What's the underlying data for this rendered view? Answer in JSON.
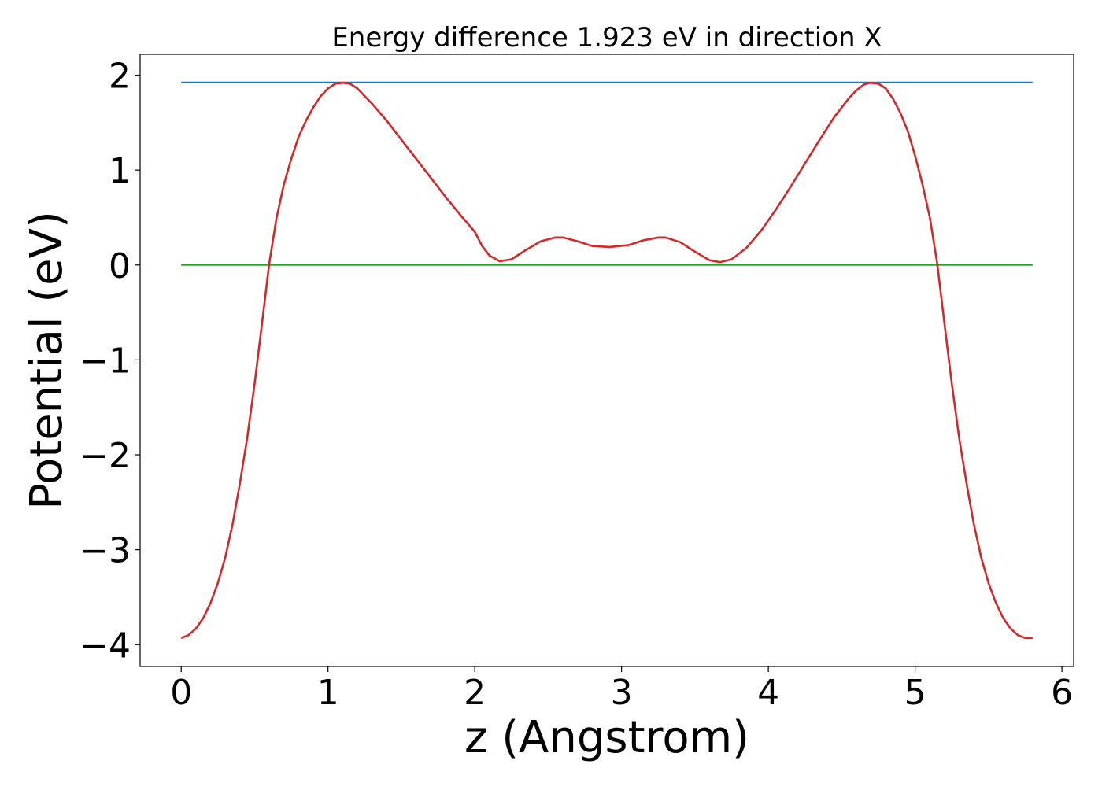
{
  "chart_data": {
    "type": "line",
    "title": "Energy difference 1.923 eV in direction X",
    "xlabel": "z (Angstrom)",
    "ylabel": "Potential (eV)",
    "xlim": [
      -0.28,
      6.08
    ],
    "ylim": [
      -4.23,
      2.22
    ],
    "xticks": [
      0,
      1,
      2,
      3,
      4,
      5,
      6
    ],
    "xtick_labels": [
      "0",
      "1",
      "2",
      "3",
      "4",
      "5",
      "6"
    ],
    "yticks": [
      2,
      1,
      0,
      -1,
      -2,
      -3,
      -4
    ],
    "ytick_labels": [
      "2",
      "1",
      "0",
      "−1",
      "−2",
      "−3",
      "−4"
    ],
    "grid": false,
    "legend": "none",
    "series": [
      {
        "color": "#d62728",
        "x": [
          0.0,
          0.05,
          0.1,
          0.15,
          0.2,
          0.25,
          0.3,
          0.35,
          0.4,
          0.45,
          0.5,
          0.55,
          0.6,
          0.65,
          0.7,
          0.75,
          0.8,
          0.85,
          0.9,
          0.95,
          1.0,
          1.05,
          1.1,
          1.15,
          1.2,
          1.25,
          1.3,
          1.4,
          1.5,
          1.6,
          1.7,
          1.8,
          1.9,
          2.0,
          2.05,
          2.1,
          2.17,
          2.25,
          2.35,
          2.45,
          2.55,
          2.6,
          2.7,
          2.8,
          2.92,
          3.05,
          3.15,
          3.25,
          3.3,
          3.4,
          3.5,
          3.6,
          3.67,
          3.75,
          3.85,
          3.95,
          4.05,
          4.15,
          4.25,
          4.35,
          4.45,
          4.55,
          4.6,
          4.65,
          4.69,
          4.75,
          4.8,
          4.85,
          4.9,
          4.95,
          5.0,
          5.05,
          5.1,
          5.15,
          5.2,
          5.25,
          5.3,
          5.35,
          5.4,
          5.45,
          5.5,
          5.55,
          5.6,
          5.65,
          5.7,
          5.75,
          5.8
        ],
        "y": [
          -3.93,
          -3.9,
          -3.83,
          -3.72,
          -3.56,
          -3.35,
          -3.08,
          -2.73,
          -2.3,
          -1.82,
          -1.25,
          -0.62,
          0.02,
          0.5,
          0.85,
          1.12,
          1.35,
          1.52,
          1.66,
          1.78,
          1.86,
          1.91,
          1.92,
          1.91,
          1.86,
          1.78,
          1.7,
          1.52,
          1.32,
          1.12,
          0.92,
          0.72,
          0.53,
          0.35,
          0.2,
          0.1,
          0.04,
          0.06,
          0.16,
          0.25,
          0.29,
          0.29,
          0.25,
          0.2,
          0.19,
          0.21,
          0.26,
          0.29,
          0.29,
          0.24,
          0.14,
          0.05,
          0.03,
          0.06,
          0.18,
          0.36,
          0.58,
          0.82,
          1.07,
          1.32,
          1.56,
          1.76,
          1.84,
          1.9,
          1.92,
          1.91,
          1.86,
          1.75,
          1.6,
          1.41,
          1.15,
          0.85,
          0.5,
          0.02,
          -0.62,
          -1.25,
          -1.82,
          -2.3,
          -2.73,
          -3.08,
          -3.35,
          -3.56,
          -3.72,
          -3.83,
          -3.9,
          -3.93,
          -3.93
        ]
      },
      {
        "color": "#1f77b4",
        "x": [
          0.0,
          5.8
        ],
        "y": [
          1.923,
          1.923
        ]
      },
      {
        "color": "#2ca02c",
        "x": [
          0.0,
          5.8
        ],
        "y": [
          0.0,
          0.0
        ]
      }
    ]
  }
}
